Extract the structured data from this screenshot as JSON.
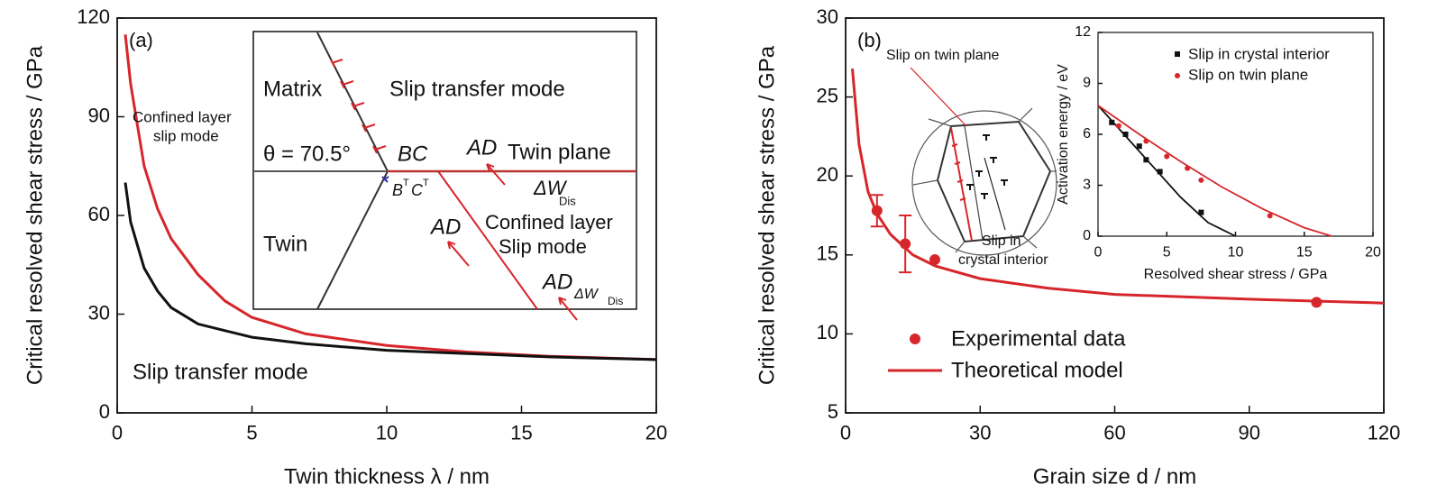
{
  "chart_data": [
    {
      "type": "line",
      "x_label": "Twin thickness λ / nm",
      "y_label": "Critical resolved shear stress / GPa",
      "xlim": [
        0,
        20
      ],
      "xticks": [
        0,
        5,
        10,
        15,
        20
      ],
      "ylim": [
        0,
        120
      ],
      "yticks": [
        0,
        30,
        60,
        90,
        120
      ],
      "series": [
        {
          "color": "#d7262b",
          "mode": "lines",
          "x": [
            0.3,
            0.5,
            1,
            1.5,
            2,
            3,
            4,
            5,
            7,
            10,
            13,
            16,
            20
          ],
          "values": [
            115,
            100,
            75,
            62,
            53,
            42,
            34,
            29,
            24,
            20.5,
            18.5,
            17.2,
            16.2
          ]
        },
        {
          "color": "#111111",
          "mode": "lines",
          "x": [
            0.3,
            0.5,
            1,
            1.5,
            2,
            3,
            4,
            5,
            7,
            10,
            13,
            16,
            20
          ],
          "values": [
            70,
            58,
            44,
            37,
            32,
            27,
            25,
            23,
            21,
            19,
            18,
            17,
            16.2
          ]
        }
      ],
      "annotations": [
        "(a)",
        "Confined layer",
        "slip mode",
        "Slip transfer mode",
        "Matrix",
        "Slip transfer mode",
        "θ = 70.5°",
        "BC",
        "AD",
        "Twin plane",
        "ΔW",
        "Dis",
        "B",
        "T",
        "C",
        "T",
        "AD",
        "Confined layer",
        "Slip mode",
        "Twin",
        "AD",
        "ΔW",
        "Dis"
      ]
    },
    {
      "type": "line",
      "x_label": "Grain size d / nm",
      "y_label": "Critical resolved shear stress / GPa",
      "xlim": [
        0,
        120
      ],
      "xticks": [
        0,
        30,
        60,
        90,
        120
      ],
      "ylim": [
        5,
        30
      ],
      "yticks": [
        5,
        10,
        15,
        20,
        25,
        30
      ],
      "series": [
        {
          "name": "Experimental data",
          "color": "#d7262b",
          "mode": "markers",
          "x": [
            7,
            13.3,
            19.9,
            105
          ],
          "values": [
            17.8,
            15.7,
            14.7,
            12
          ],
          "errors": [
            1,
            1.8,
            null,
            null
          ]
        },
        {
          "name": "Theoretical model",
          "color": "#d7262b",
          "mode": "lines",
          "x": [
            1.5,
            3,
            5,
            7,
            10,
            15,
            20,
            30,
            45,
            60,
            90,
            120
          ],
          "values": [
            26.8,
            22,
            19,
            17.6,
            16.3,
            15,
            14.3,
            13.5,
            12.9,
            12.5,
            12.2,
            11.95
          ]
        }
      ],
      "annotations": [
        "(b)",
        "Slip on twin plane",
        "Slip in",
        "crystal interior"
      ]
    },
    {
      "type": "line",
      "x_label": "Resolved shear stress / GPa",
      "y_label": "Activation energy / eV",
      "xlim": [
        0,
        20
      ],
      "xticks": [
        0,
        5,
        10,
        15,
        20
      ],
      "ylim": [
        0,
        12
      ],
      "yticks": [
        0,
        3,
        6,
        9,
        12
      ],
      "series": [
        {
          "name": "Slip in crystal interior",
          "color": "#111111",
          "mode": "markers+lines",
          "x": [
            1,
            2,
            3,
            3.5,
            4.5,
            7.5
          ],
          "values": [
            6.7,
            6.0,
            5.3,
            4.5,
            3.8,
            1.4
          ],
          "fit_x": [
            0,
            2,
            4,
            6,
            8,
            10
          ],
          "fit_values": [
            7.7,
            5.9,
            4.1,
            2.3,
            0.8,
            0
          ]
        },
        {
          "name": "Slip on twin plane",
          "color": "#d7262b",
          "mode": "markers+lines",
          "x": [
            1.5,
            3.5,
            5,
            6.5,
            7.5,
            12.5
          ],
          "values": [
            6.5,
            5.6,
            4.7,
            4.0,
            3.3,
            1.2
          ],
          "fit_x": [
            0,
            3,
            6,
            9,
            12,
            15,
            17
          ],
          "fit_values": [
            7.7,
            6.0,
            4.4,
            2.9,
            1.6,
            0.5,
            0
          ]
        }
      ]
    }
  ]
}
